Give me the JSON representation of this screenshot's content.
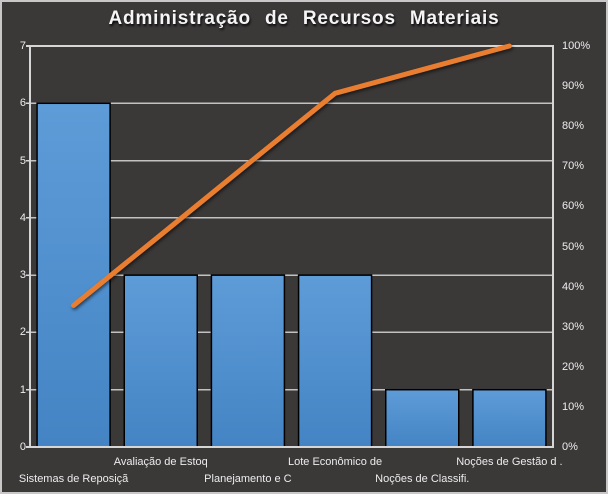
{
  "chart_data": {
    "type": "pareto",
    "title": "Administração de Recursos Materiais",
    "categories": [
      "Sistemas de Reposiçã",
      "Avaliação de Estoq",
      "Planejamento e C",
      "Lote Econômico de",
      "Noções de Classifi.",
      "Noções de Gestão d ."
    ],
    "series": [
      {
        "name": "frequency-bars",
        "type": "bar",
        "axis": "left",
        "values": [
          6,
          3,
          3,
          3,
          1,
          1
        ]
      },
      {
        "name": "cumulative-line",
        "type": "line",
        "axis": "right",
        "values": [
          35.3,
          52.9,
          70.6,
          88.2,
          94.1,
          100
        ]
      }
    ],
    "left_axis": {
      "min": 0,
      "max": 7,
      "step": 1,
      "tick_labels": [
        "0",
        "1",
        "2",
        "3",
        "4",
        "5",
        "6",
        "7"
      ]
    },
    "right_axis": {
      "min": 0,
      "max": 100,
      "step": 10,
      "tick_labels": [
        "0%",
        "10%",
        "20%",
        "30%",
        "40%",
        "50%",
        "60%",
        "70%",
        "80%",
        "90%",
        "100%"
      ]
    },
    "grid": "horizontal gridlines at left-axis integers",
    "legend": "none",
    "colors": {
      "background": "#3b3838",
      "plot_border": "#d6d6d6",
      "gridline": "#c2c2c2",
      "bar_fill_top": "#5e9cd8",
      "bar_fill_bottom": "#4484c4",
      "bar_border": "#000000",
      "line": "#e97e30",
      "text": "#ededed",
      "title_text": "#f5f5f5"
    }
  }
}
